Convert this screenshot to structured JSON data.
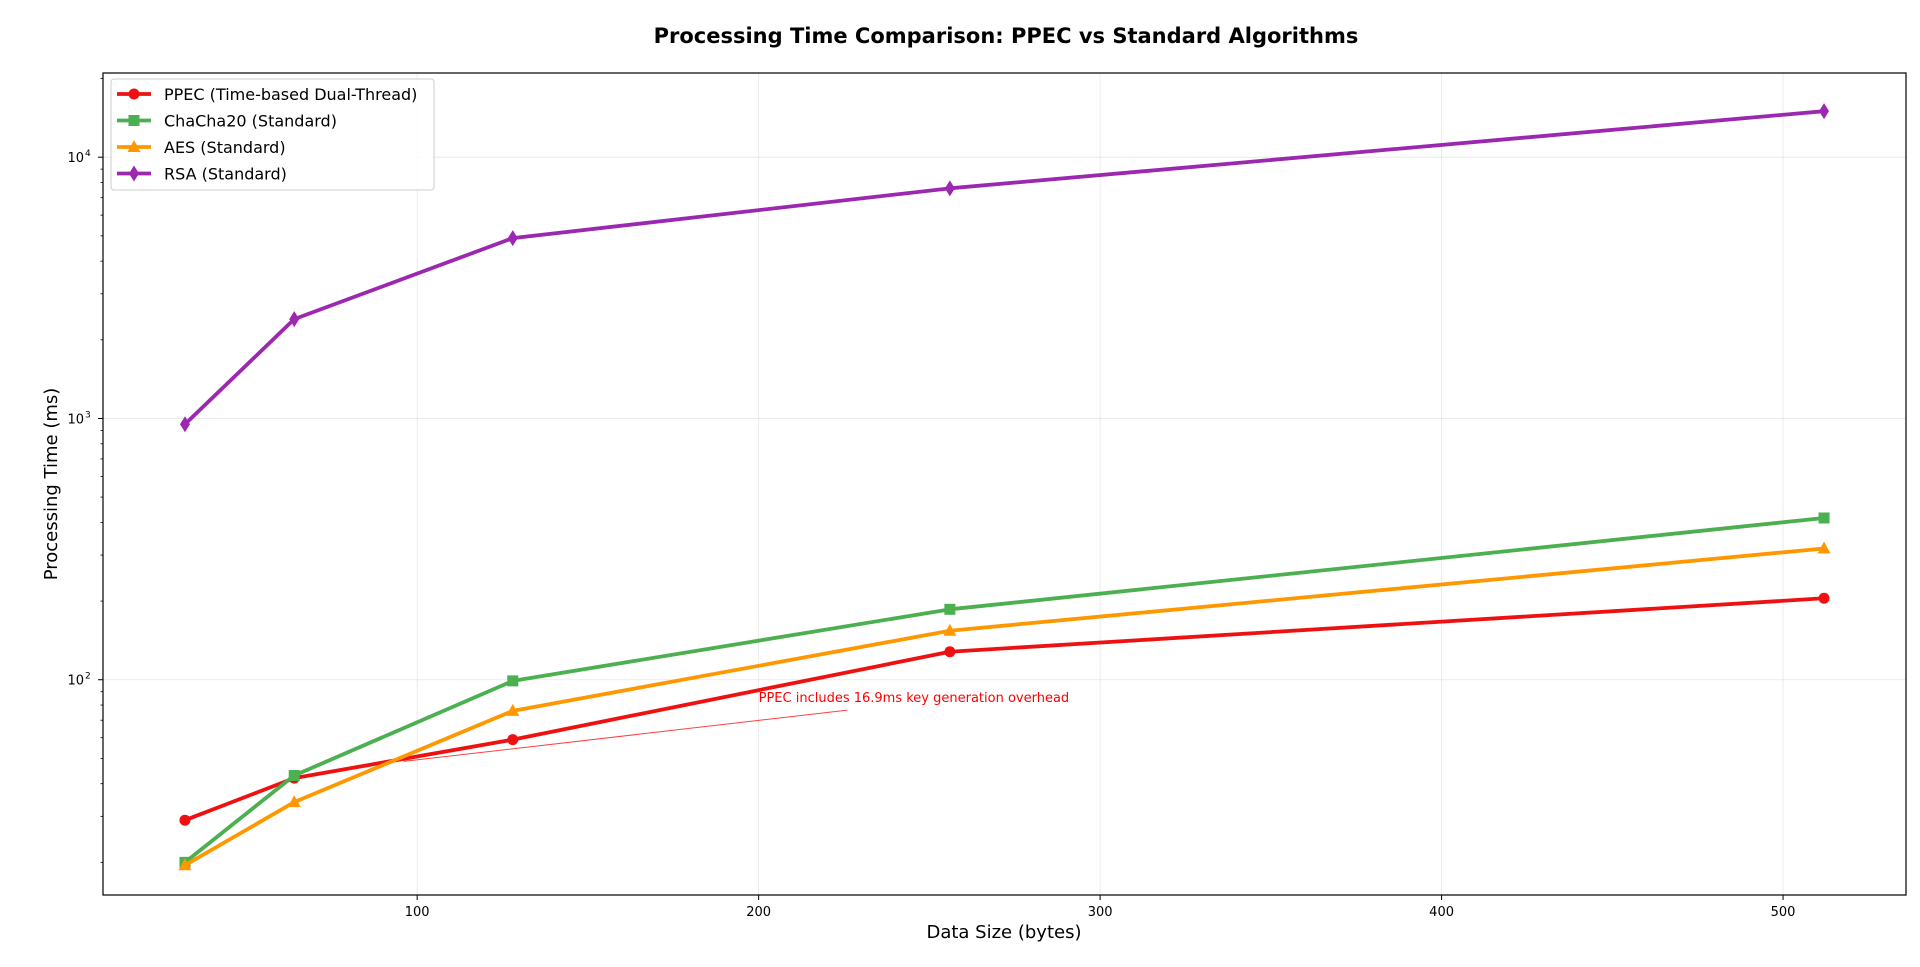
{
  "chart_data": {
    "type": "line",
    "title": "Processing Time Comparison: PPEC vs Standard Algorithms",
    "xlabel": "Data Size (bytes)",
    "ylabel": "Processing Time (ms)",
    "x": [
      32,
      64,
      128,
      256,
      512
    ],
    "xlim": [
      8,
      536
    ],
    "ylim": [
      15,
      21000
    ],
    "yscale": "log",
    "grid": true,
    "legend_position": "top-left",
    "x_ticks": [
      100,
      200,
      300,
      400,
      500
    ],
    "y_ticks": [
      {
        "value": 100,
        "base": "10",
        "exp": "2"
      },
      {
        "value": 1000,
        "base": "10",
        "exp": "3"
      },
      {
        "value": 10000,
        "base": "10",
        "exp": "4"
      }
    ],
    "series": [
      {
        "name": "PPEC (Time-based Dual-Thread)",
        "color": "#ee1111",
        "marker": "circle",
        "values": [
          29,
          42,
          59,
          128,
          205
        ]
      },
      {
        "name": "ChaCha20 (Standard)",
        "color": "#4caf50",
        "marker": "square",
        "values": [
          20,
          43,
          99,
          186,
          416
        ]
      },
      {
        "name": "AES (Standard)",
        "color": "#ff9800",
        "marker": "triangle",
        "values": [
          19.5,
          34,
          76,
          154,
          318
        ]
      },
      {
        "name": "RSA (Standard)",
        "color": "#9c27b0",
        "marker": "diamond",
        "values": [
          950,
          2400,
          4900,
          7600,
          15000
        ]
      }
    ],
    "annotation": {
      "text": "PPEC includes 16.9ms key generation overhead",
      "color": "#ff0000",
      "text_x": 200,
      "text_y": 85,
      "point_x": 96,
      "point_y": 50
    }
  }
}
